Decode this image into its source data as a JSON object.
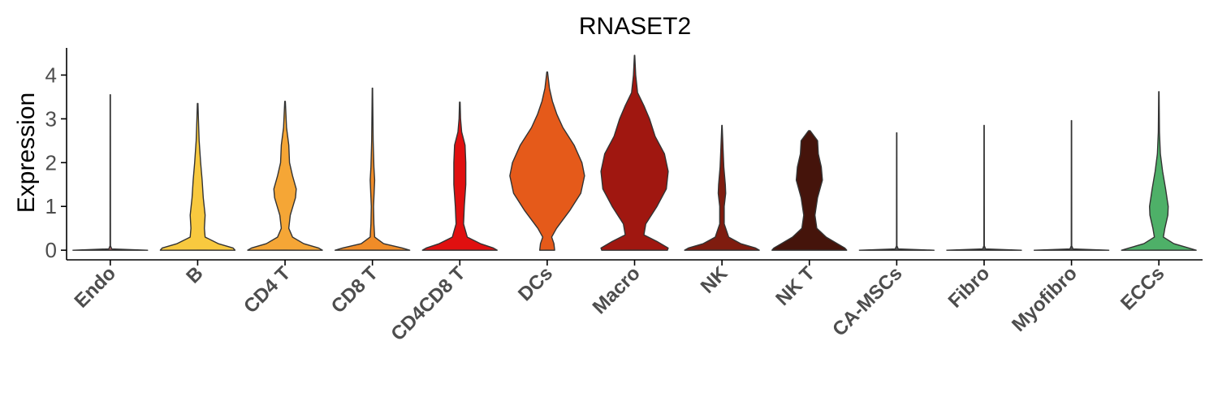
{
  "chart_data": {
    "type": "violin",
    "title": "RNASET2",
    "xlabel": "",
    "ylabel": "Expression",
    "ylim": [
      -0.22,
      4.62
    ],
    "yticks": [
      0,
      1,
      2,
      3,
      4
    ],
    "grid": false,
    "legend": "none",
    "categories": [
      "Endo",
      "B",
      "CD4 T",
      "CD8 T",
      "CD4CD8 T",
      "DCs",
      "Macro",
      "NK",
      "NK T",
      "CA-MSCs",
      "Fibro",
      "Myofibro",
      "ECCs"
    ],
    "series": [
      {
        "category": "Endo",
        "color": "#a06060",
        "max": 3.55,
        "profile": [
          [
            0,
            1.0
          ],
          [
            0.03,
            0.04
          ],
          [
            0.1,
            0.006
          ],
          [
            3.55,
            0.004
          ]
        ]
      },
      {
        "category": "B",
        "color": "#f8c93f",
        "max": 3.35,
        "profile": [
          [
            0,
            1.0
          ],
          [
            0.05,
            0.95
          ],
          [
            0.15,
            0.55
          ],
          [
            0.3,
            0.2
          ],
          [
            0.5,
            0.18
          ],
          [
            0.8,
            0.2
          ],
          [
            1.2,
            0.15
          ],
          [
            1.6,
            0.12
          ],
          [
            2.0,
            0.08
          ],
          [
            2.5,
            0.04
          ],
          [
            3.0,
            0.02
          ],
          [
            3.35,
            0.008
          ]
        ]
      },
      {
        "category": "CD4 T",
        "color": "#f5a636",
        "max": 3.4,
        "profile": [
          [
            0,
            1.0
          ],
          [
            0.05,
            0.9
          ],
          [
            0.15,
            0.5
          ],
          [
            0.3,
            0.2
          ],
          [
            0.5,
            0.1
          ],
          [
            0.8,
            0.14
          ],
          [
            1.2,
            0.28
          ],
          [
            1.4,
            0.3
          ],
          [
            1.7,
            0.2
          ],
          [
            2.0,
            0.12
          ],
          [
            2.4,
            0.1
          ],
          [
            2.8,
            0.04
          ],
          [
            3.4,
            0.008
          ]
        ]
      },
      {
        "category": "CD8 T",
        "color": "#f08c28",
        "max": 3.7,
        "profile": [
          [
            0,
            1.0
          ],
          [
            0.05,
            0.8
          ],
          [
            0.15,
            0.3
          ],
          [
            0.3,
            0.06
          ],
          [
            0.6,
            0.04
          ],
          [
            1.0,
            0.03
          ],
          [
            1.4,
            0.05
          ],
          [
            1.6,
            0.06
          ],
          [
            1.9,
            0.04
          ],
          [
            2.5,
            0.02
          ],
          [
            3.7,
            0.005
          ]
        ]
      },
      {
        "category": "CD4CD8 T",
        "color": "#e01010",
        "max": 3.38,
        "profile": [
          [
            0,
            1.0
          ],
          [
            0.05,
            0.9
          ],
          [
            0.15,
            0.55
          ],
          [
            0.3,
            0.2
          ],
          [
            0.6,
            0.1
          ],
          [
            1.0,
            0.12
          ],
          [
            1.5,
            0.16
          ],
          [
            2.0,
            0.16
          ],
          [
            2.4,
            0.14
          ],
          [
            2.7,
            0.05
          ],
          [
            3.0,
            0.02
          ],
          [
            3.38,
            0.008
          ]
        ]
      },
      {
        "category": "DCs",
        "color": "#e55a1a",
        "max": 4.07,
        "profile": [
          [
            0,
            0.2
          ],
          [
            0.15,
            0.18
          ],
          [
            0.3,
            0.12
          ],
          [
            0.5,
            0.25
          ],
          [
            0.9,
            0.6
          ],
          [
            1.3,
            0.9
          ],
          [
            1.7,
            1.0
          ],
          [
            2.0,
            0.93
          ],
          [
            2.4,
            0.72
          ],
          [
            2.8,
            0.42
          ],
          [
            3.1,
            0.26
          ],
          [
            3.4,
            0.14
          ],
          [
            3.7,
            0.06
          ],
          [
            4.07,
            0.01
          ]
        ]
      },
      {
        "category": "Macro",
        "color": "#a01710",
        "max": 4.45,
        "profile": [
          [
            0,
            0.88
          ],
          [
            0.05,
            0.9
          ],
          [
            0.2,
            0.6
          ],
          [
            0.35,
            0.25
          ],
          [
            0.6,
            0.3
          ],
          [
            1.0,
            0.6
          ],
          [
            1.4,
            0.85
          ],
          [
            1.8,
            0.9
          ],
          [
            2.2,
            0.8
          ],
          [
            2.6,
            0.55
          ],
          [
            3.0,
            0.4
          ],
          [
            3.3,
            0.25
          ],
          [
            3.6,
            0.08
          ],
          [
            4.0,
            0.03
          ],
          [
            4.45,
            0.005
          ]
        ]
      },
      {
        "category": "NK",
        "color": "#7f1c0f",
        "max": 2.85,
        "profile": [
          [
            0,
            1.0
          ],
          [
            0.05,
            0.9
          ],
          [
            0.15,
            0.5
          ],
          [
            0.3,
            0.18
          ],
          [
            0.6,
            0.06
          ],
          [
            1.0,
            0.06
          ],
          [
            1.3,
            0.1
          ],
          [
            1.5,
            0.09
          ],
          [
            1.9,
            0.05
          ],
          [
            2.3,
            0.03
          ],
          [
            2.85,
            0.005
          ]
        ]
      },
      {
        "category": "NK T",
        "color": "#45140b",
        "max": 2.73,
        "profile": [
          [
            0,
            1.0
          ],
          [
            0.05,
            0.95
          ],
          [
            0.15,
            0.75
          ],
          [
            0.3,
            0.45
          ],
          [
            0.5,
            0.2
          ],
          [
            0.8,
            0.15
          ],
          [
            1.2,
            0.22
          ],
          [
            1.6,
            0.35
          ],
          [
            1.9,
            0.32
          ],
          [
            2.2,
            0.24
          ],
          [
            2.5,
            0.22
          ],
          [
            2.73,
            0.02
          ]
        ]
      },
      {
        "category": "CA-MSCs",
        "color": "#555555",
        "max": 2.68,
        "profile": [
          [
            0,
            1.0
          ],
          [
            0.03,
            0.04
          ],
          [
            0.1,
            0.006
          ],
          [
            2.68,
            0.004
          ]
        ]
      },
      {
        "category": "Fibro",
        "color": "#555555",
        "max": 2.85,
        "profile": [
          [
            0,
            1.0
          ],
          [
            0.03,
            0.04
          ],
          [
            0.1,
            0.006
          ],
          [
            2.85,
            0.004
          ]
        ]
      },
      {
        "category": "Myofibro",
        "color": "#555555",
        "max": 2.96,
        "profile": [
          [
            0,
            1.0
          ],
          [
            0.03,
            0.04
          ],
          [
            0.1,
            0.006
          ],
          [
            2.96,
            0.004
          ]
        ]
      },
      {
        "category": "ECCs",
        "color": "#4eb068",
        "max": 3.62,
        "profile": [
          [
            0,
            1.0
          ],
          [
            0.05,
            0.8
          ],
          [
            0.15,
            0.4
          ],
          [
            0.3,
            0.12
          ],
          [
            0.5,
            0.16
          ],
          [
            0.8,
            0.24
          ],
          [
            1.0,
            0.25
          ],
          [
            1.4,
            0.18
          ],
          [
            1.8,
            0.1
          ],
          [
            2.2,
            0.04
          ],
          [
            2.7,
            0.015
          ],
          [
            3.62,
            0.005
          ]
        ]
      }
    ]
  }
}
